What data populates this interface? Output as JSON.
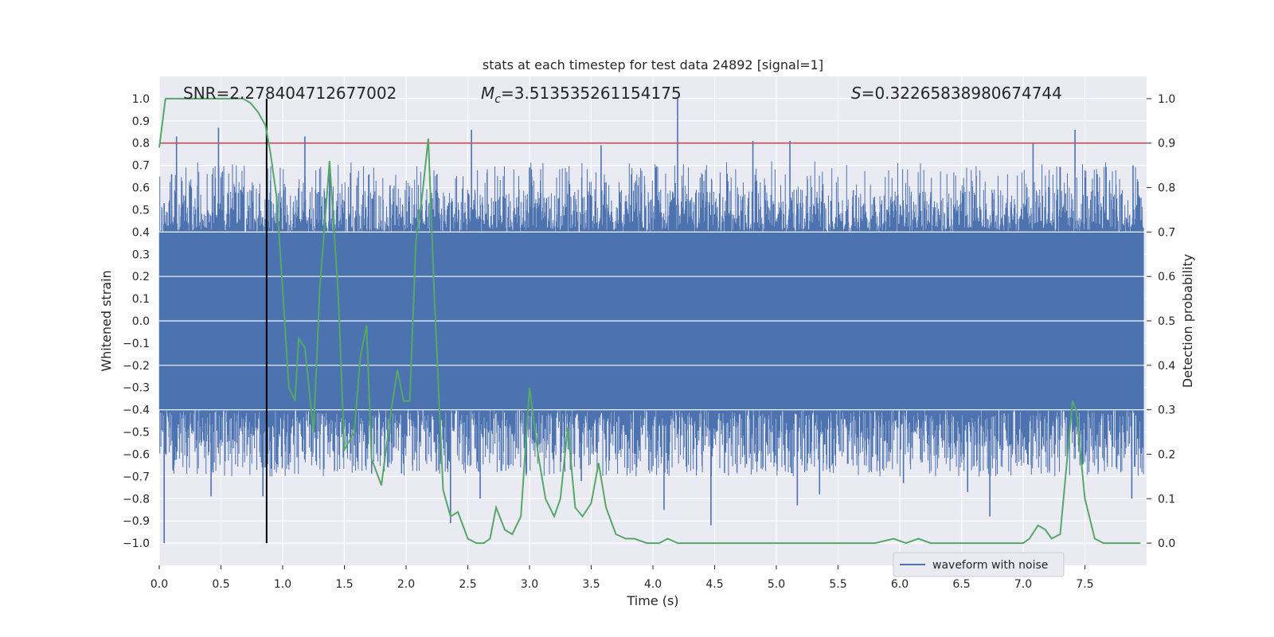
{
  "chart_data": {
    "type": "line",
    "title": "stats at each timestep for test data 24892 [signal=1]",
    "xlabel": "Time (s)",
    "ylabel_left": "Whitened strain",
    "ylabel_right": "Detection probability",
    "xlim": [
      0,
      8
    ],
    "ylim_left": [
      -1.1,
      1.1
    ],
    "ylim_right": [
      -0.05,
      1.05
    ],
    "grid": true,
    "legend_placement": "lower-right",
    "x_ticks": [
      "0.0",
      "0.5",
      "1.0",
      "1.5",
      "2.0",
      "2.5",
      "3.0",
      "3.5",
      "4.0",
      "4.5",
      "5.0",
      "5.5",
      "6.0",
      "6.5",
      "7.0",
      "7.5"
    ],
    "y_left_ticks": [
      "1.0",
      "0.9",
      "0.8",
      "0.7",
      "0.6",
      "0.5",
      "0.4",
      "0.3",
      "0.2",
      "0.1",
      "0.0",
      "−0.1",
      "−0.2",
      "−0.3",
      "−0.4",
      "−0.5",
      "−0.6",
      "−0.7",
      "−0.8",
      "−0.9",
      "−1.0"
    ],
    "y_right_ticks": [
      "1.0",
      "0.9",
      "0.8",
      "0.7",
      "0.6",
      "0.5",
      "0.4",
      "0.3",
      "0.2",
      "0.1",
      "0.0"
    ],
    "annotations": {
      "snr": "SNR=2.278404712677002",
      "mc_symbol": "M",
      "mc_sub": "c",
      "mc_value": "=3.513535261154175",
      "s_symbol": "S",
      "s_value": "=0.32265838980674744"
    },
    "threshold": {
      "value": 0.9,
      "axis": "right",
      "color": "#c44e52"
    },
    "event_marker": {
      "x": 0.87,
      "color": "#000000"
    },
    "waveform": {
      "name": "waveform with noise",
      "color": "#4c72b0",
      "band": 0.4,
      "peaks": [
        [
          0.04,
          0.53
        ],
        [
          0.04,
          -1.0
        ],
        [
          0.1,
          0.66
        ],
        [
          0.14,
          0.83
        ],
        [
          0.25,
          0.61
        ],
        [
          0.42,
          -0.79
        ],
        [
          0.48,
          0.87
        ],
        [
          0.66,
          0.59
        ],
        [
          0.84,
          -0.79
        ],
        [
          1.18,
          0.83
        ],
        [
          1.38,
          0.67
        ],
        [
          1.58,
          -0.56
        ],
        [
          1.87,
          0.61
        ],
        [
          2.25,
          0.66
        ],
        [
          2.36,
          -0.91
        ],
        [
          2.53,
          0.86
        ],
        [
          2.6,
          -0.8
        ],
        [
          3.0,
          0.69
        ],
        [
          3.42,
          -0.72
        ],
        [
          3.58,
          0.79
        ],
        [
          4.2,
          1.0
        ],
        [
          4.09,
          -0.85
        ],
        [
          4.47,
          -0.92
        ],
        [
          4.81,
          0.81
        ],
        [
          5.11,
          0.81
        ],
        [
          5.17,
          -0.83
        ],
        [
          5.35,
          -0.78
        ],
        [
          6.03,
          -0.73
        ],
        [
          6.55,
          -0.77
        ],
        [
          6.73,
          -0.88
        ],
        [
          7.08,
          0.8
        ],
        [
          7.42,
          0.86
        ],
        [
          7.6,
          0.66
        ],
        [
          7.88,
          -0.8
        ],
        [
          7.89,
          0.7
        ],
        [
          7.72,
          -0.14
        ]
      ]
    },
    "detection_probability": {
      "name": "detection probability",
      "color": "#55a868",
      "x": [
        0.0,
        0.05,
        0.1,
        0.15,
        0.2,
        0.3,
        0.4,
        0.5,
        0.6,
        0.68,
        0.74,
        0.8,
        0.86,
        0.9,
        0.95,
        1.0,
        1.05,
        1.1,
        1.13,
        1.18,
        1.25,
        1.3,
        1.38,
        1.45,
        1.5,
        1.58,
        1.63,
        1.68,
        1.72,
        1.8,
        1.88,
        1.93,
        1.98,
        2.03,
        2.08,
        2.13,
        2.18,
        2.23,
        2.3,
        2.36,
        2.42,
        2.5,
        2.57,
        2.63,
        2.68,
        2.73,
        2.8,
        2.86,
        2.93,
        3.0,
        3.07,
        3.13,
        3.2,
        3.25,
        3.31,
        3.37,
        3.43,
        3.5,
        3.56,
        3.62,
        3.7,
        3.78,
        3.85,
        3.95,
        4.05,
        4.12,
        4.2,
        4.3,
        4.4,
        4.6,
        5.0,
        5.5,
        5.8,
        5.95,
        6.05,
        6.15,
        6.25,
        6.5,
        6.8,
        7.0,
        7.05,
        7.12,
        7.18,
        7.23,
        7.3,
        7.36,
        7.4,
        7.43,
        7.5,
        7.58,
        7.65,
        7.7,
        7.8,
        7.95
      ],
      "y": [
        0.89,
        1.0,
        1.0,
        1.0,
        1.0,
        1.0,
        1.0,
        1.0,
        1.0,
        1.0,
        0.99,
        0.97,
        0.94,
        0.88,
        0.78,
        0.57,
        0.35,
        0.32,
        0.46,
        0.44,
        0.25,
        0.57,
        0.86,
        0.56,
        0.21,
        0.25,
        0.42,
        0.49,
        0.19,
        0.13,
        0.3,
        0.39,
        0.32,
        0.32,
        0.68,
        0.78,
        0.91,
        0.55,
        0.12,
        0.06,
        0.07,
        0.01,
        0.0,
        0.0,
        0.01,
        0.08,
        0.03,
        0.02,
        0.06,
        0.35,
        0.2,
        0.1,
        0.06,
        0.1,
        0.26,
        0.08,
        0.06,
        0.09,
        0.18,
        0.08,
        0.02,
        0.01,
        0.01,
        0.0,
        0.0,
        0.01,
        0.0,
        0.0,
        0.0,
        0.0,
        0.0,
        0.0,
        0.0,
        0.01,
        0.0,
        0.01,
        0.0,
        0.0,
        0.0,
        0.0,
        0.01,
        0.04,
        0.03,
        0.01,
        0.02,
        0.2,
        0.32,
        0.3,
        0.1,
        0.01,
        0.0,
        0.0,
        0.0,
        0.0
      ]
    }
  }
}
